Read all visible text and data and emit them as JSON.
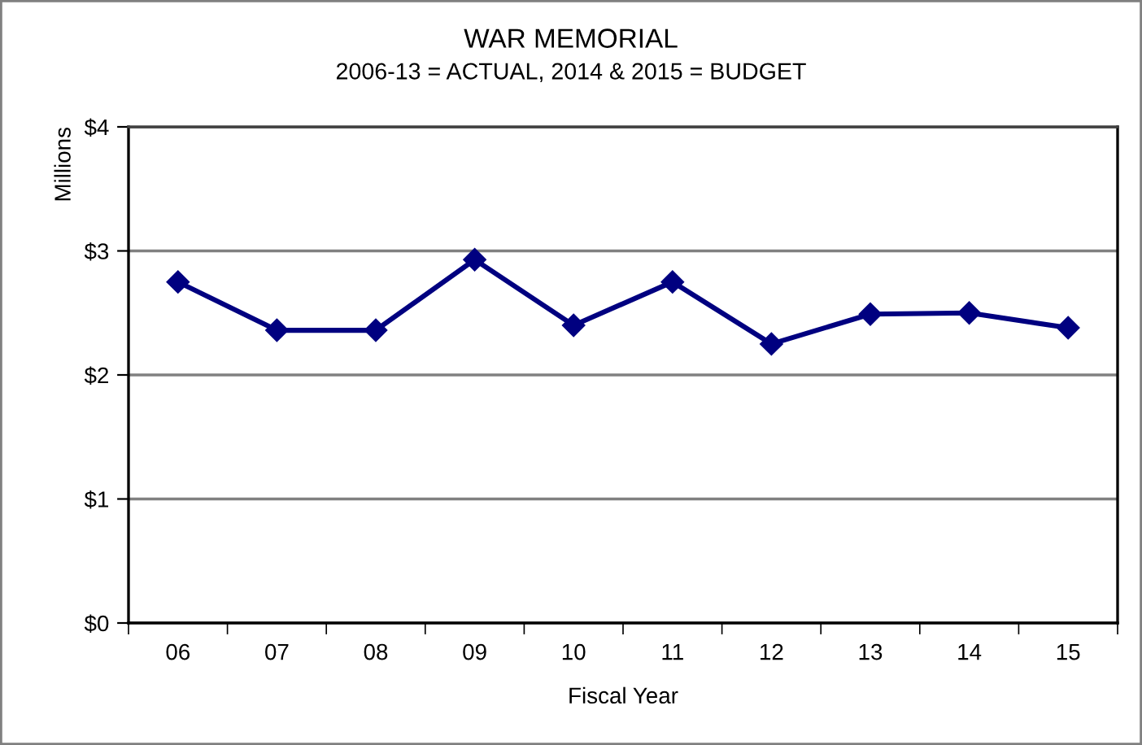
{
  "chart_data": {
    "type": "line",
    "title": "WAR MEMORIAL",
    "subtitle": "2006-13 = ACTUAL, 2014 & 2015 = BUDGET",
    "xlabel": "Fiscal Year",
    "ylabel": "Millions",
    "categories": [
      "06",
      "07",
      "08",
      "09",
      "10",
      "11",
      "12",
      "13",
      "14",
      "15"
    ],
    "series": [
      {
        "color": "#000080",
        "values": [
          2.75,
          2.36,
          2.36,
          2.93,
          2.4,
          2.75,
          2.25,
          2.49,
          2.5,
          2.38
        ]
      }
    ],
    "ylim": [
      0,
      4
    ],
    "yticks": [
      {
        "value": 0,
        "label": "$0"
      },
      {
        "value": 1,
        "label": "$1"
      },
      {
        "value": 2,
        "label": "$2"
      },
      {
        "value": 3,
        "label": "$3"
      },
      {
        "value": 4,
        "label": "$4"
      }
    ],
    "grid": "y",
    "marker": "diamond",
    "line_style": "solid"
  }
}
